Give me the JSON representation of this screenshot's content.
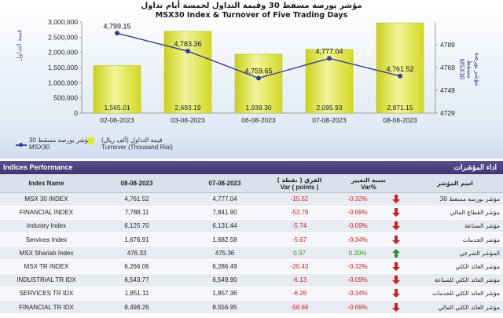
{
  "chart_data": {
    "type": "bar",
    "title_ar": "مؤشر بورصة مسقط 30 وقيمة التداول لخمسة أيام تداول",
    "title": "MSX30 Index & Turnover of Five Trading Days",
    "categories": [
      "02-08-2023",
      "03-08-2023",
      "06-08-2023",
      "07-08-2023",
      "08-08-2023"
    ],
    "series": [
      {
        "name": "Turnover (Thousand Rial)",
        "name_ar": "قيمة التداول (ألف ريال)",
        "type": "bar",
        "axis": "left",
        "values": [
          1565.01,
          2693.19,
          1939.3,
          2095.93,
          2971.15
        ],
        "labels": [
          "1,565.01",
          "2,693.19",
          "1,939.30",
          "2,095.93",
          "2,971.15"
        ],
        "color": "#e2e82c"
      },
      {
        "name": "MSX30",
        "name_ar": "مؤشر بورصة مسقط 30",
        "type": "line",
        "axis": "right",
        "values": [
          4799.15,
          4783.36,
          4759.65,
          4777.04,
          4761.52
        ],
        "labels": [
          "4,799.15",
          "4,783.36",
          "4,759.65",
          "4,777.04",
          "4,761.52"
        ],
        "color": "#3a3a9a"
      }
    ],
    "y_left": {
      "label_ar": "قيمة التداول",
      "ylim": [
        0,
        3000000
      ],
      "ticks": [
        0,
        500000,
        1000000,
        1500000,
        2000000,
        2500000,
        3000000
      ],
      "tick_labels": [
        "0",
        "500,000",
        "1,000,000",
        "1,500,000",
        "2,000,000",
        "2,500,000",
        "3,000,000"
      ]
    },
    "y_right": {
      "label": "MSX30",
      "label_ar": "مؤشر بورصة مسقط",
      "ylim": [
        4729,
        4809
      ],
      "ticks": [
        4729,
        4749,
        4769,
        4789
      ],
      "tick_labels": [
        "4729",
        "4749",
        "4769",
        "4789"
      ]
    },
    "grid": false,
    "legend_placement": "bottom-left"
  },
  "table": {
    "title": "Indices Performance",
    "title_ar": "اداء المؤشرات",
    "headers": {
      "name": "Index Name",
      "d1": "08-08-2023",
      "d2": "07-08-2023",
      "var_ar": "الفرق ( نقطة )",
      "var": "Var ( points )",
      "pct_ar": "نسبة التغيير",
      "pct": "Var%",
      "name_ar": "اسم المؤشر"
    },
    "colors": {
      "negative": "#d2201e",
      "positive": "#1f9a2a"
    },
    "rows": [
      {
        "name": "MSX 30 INDEX",
        "d1": "4,761.52",
        "d2": "4,777.04",
        "var": "-15.52",
        "pct": "-0.32%",
        "dir": "down",
        "name_ar": "مؤشر بورصة مسقط 30"
      },
      {
        "name": "FINANCIAL INDEX",
        "d1": "7,788.11",
        "d2": "7,841.90",
        "var": "-53.79",
        "pct": "-0.69%",
        "dir": "down",
        "name_ar": "مؤشر القطاع المالي"
      },
      {
        "name": "Industry Index",
        "d1": "6,125.70",
        "d2": "6,131.44",
        "var": "-5.74",
        "pct": "-0.09%",
        "dir": "down",
        "name_ar": "مؤشر الصناعة"
      },
      {
        "name": "Services Index",
        "d1": "1,676.91",
        "d2": "1,682.58",
        "var": "-5.67",
        "pct": "-0.34%",
        "dir": "down",
        "name_ar": "مؤشر الخدمات"
      },
      {
        "name": "MSX Shariah Index",
        "d1": "476.33",
        "d2": "475.36",
        "var": "0.97",
        "pct": "0.20%",
        "dir": "up",
        "name_ar": "المؤشر الشرعي"
      },
      {
        "name": "MSX TR INDEX",
        "d1": "6,266.06",
        "d2": "6,286.49",
        "var": "-20.43",
        "pct": "-0.32%",
        "dir": "down",
        "name_ar": "مؤشر العائد الكلي"
      },
      {
        "name": "INDUSTRIAL TR IDX",
        "d1": "6,543.77",
        "d2": "6,549.90",
        "var": "-6.13",
        "pct": "-0.09%",
        "dir": "down",
        "name_ar": "مؤشر العائد الكلي للصناعة"
      },
      {
        "name": "SERVICES TR IDX",
        "d1": "1,851.11",
        "d2": "1,857.36",
        "var": "-6.26",
        "pct": "-0.34%",
        "dir": "down",
        "name_ar": "مؤشر العائد الكلي للخدمات"
      },
      {
        "name": "FINANCIAL TR IDX",
        "d1": "8,498.26",
        "d2": "8,556.95",
        "var": "-58.69",
        "pct": "-0.69%",
        "dir": "down",
        "name_ar": "مؤشر العائد الكلي المالي"
      }
    ]
  }
}
